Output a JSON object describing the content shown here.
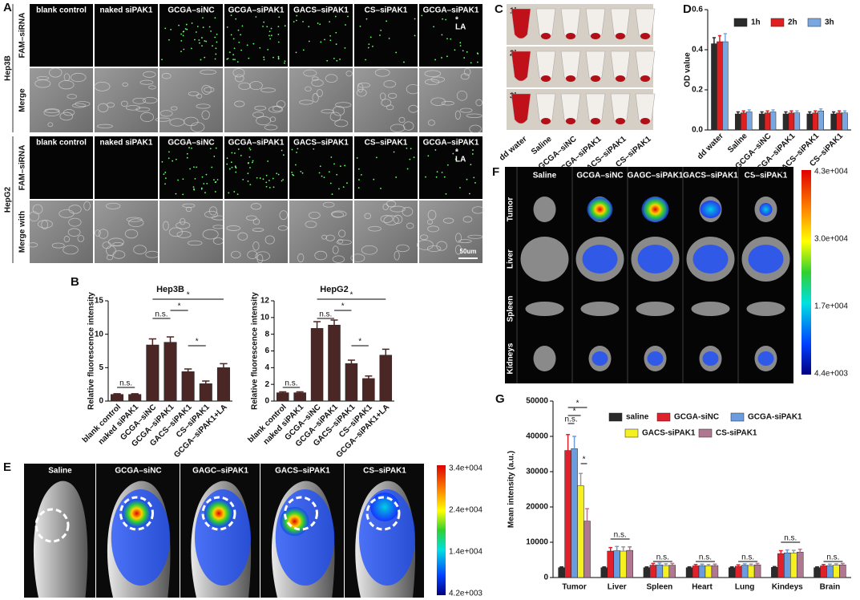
{
  "panel_labels": [
    "A",
    "B",
    "C",
    "D",
    "E",
    "F",
    "G"
  ],
  "panel_a": {
    "columns": [
      "blank control",
      "naked siPAK1",
      "GCGA–siNC",
      "GCGA–siPAK1",
      "GACS–siPAK1",
      "CS–siPAK1",
      "GCGA–siPAK1"
    ],
    "la_marker": "*",
    "la_label": "LA",
    "groups": [
      {
        "name": "Hep3B",
        "rows": [
          "FAM–siRNA",
          "Merge"
        ]
      },
      {
        "name": "HepG2",
        "rows": [
          "FAM–siRNA",
          "Merge with"
        ]
      }
    ],
    "scale_bar": "50um"
  },
  "panel_c": {
    "times": [
      "1h",
      "2h",
      "3h"
    ],
    "labels": [
      "dd water",
      "Saline",
      "GCGA–siNC",
      "GCGA–siPAK1",
      "GACS–siPAK1",
      "CS–siPAK1"
    ]
  },
  "panel_e": {
    "labels": [
      "Saline",
      "GCGA–siNC",
      "GAGC–siPAK1",
      "GACS–siPAK1",
      "CS–siPAK1"
    ],
    "colorbar": [
      "3.4e+004",
      "2.4e+004",
      "1.4e+004",
      "4.2e+003"
    ]
  },
  "panel_f": {
    "columns": [
      "Saline",
      "GCGA–siNC",
      "GAGC–siPAK1",
      "GACS–siPAK1",
      "CS–siPAK1"
    ],
    "rows": [
      "Tumor",
      "Liver",
      "Spleen",
      "Kidneys"
    ],
    "colorbar": [
      "4.3e+004",
      "3.0e+004",
      "1.7e+004",
      "4.4e+003"
    ]
  },
  "chart_data": [
    {
      "type": "bar",
      "title": "Hep3B",
      "y_label": "Relative fluorescence intensity",
      "categories": [
        "blank control",
        "naked siPAK1",
        "GCGA–siNC",
        "GCGA–siPAK1",
        "GACS–siPAK1",
        "CS–siPAK1",
        "GCGA–siPAK1+LA"
      ],
      "values": [
        1.0,
        1.0,
        8.4,
        8.8,
        4.4,
        2.6,
        5.0
      ],
      "errors": [
        0.1,
        0.1,
        0.9,
        0.8,
        0.4,
        0.4,
        0.6
      ],
      "color": "#4a2624",
      "ylim": [
        0,
        15
      ],
      "yticks": [
        0,
        5,
        10,
        15
      ],
      "annotations": [
        "n.s.",
        "n.s.",
        "*",
        "*",
        "*"
      ]
    },
    {
      "type": "bar",
      "title": "HepG2",
      "y_label": "Relative fluorescence intensity",
      "categories": [
        "blank control",
        "naked siPAK1",
        "GCGA–siNC",
        "GCGA–siPAK1",
        "GACS–siPAK1",
        "CS–siPAK1",
        "GCGA–siPAK1+LA"
      ],
      "values": [
        1.0,
        1.0,
        8.7,
        9.1,
        4.5,
        2.7,
        5.5
      ],
      "errors": [
        0.1,
        0.1,
        0.8,
        0.6,
        0.4,
        0.3,
        0.7
      ],
      "color": "#4a2624",
      "ylim": [
        0,
        12
      ],
      "yticks": [
        0,
        2,
        4,
        6,
        8,
        10,
        12
      ],
      "annotations": [
        "n.s.",
        "n.s.",
        "*",
        "*",
        "*"
      ]
    },
    {
      "type": "bar",
      "y_label": "OD value",
      "categories": [
        "dd water",
        "Saline",
        "GCGA–siNC",
        "GCGA–siPAK1",
        "GACS–siPAK1",
        "CS–siPAK1"
      ],
      "series": [
        {
          "name": "1h",
          "color": "#2b2b2b",
          "values": [
            0.43,
            0.08,
            0.08,
            0.08,
            0.08,
            0.08
          ],
          "errors": [
            0.03,
            0.01,
            0.01,
            0.01,
            0.01,
            0.01
          ]
        },
        {
          "name": "2h",
          "color": "#e02020",
          "values": [
            0.44,
            0.085,
            0.085,
            0.085,
            0.085,
            0.085
          ],
          "errors": [
            0.03,
            0.01,
            0.01,
            0.01,
            0.01,
            0.01
          ]
        },
        {
          "name": "3h",
          "color": "#7aa7e0",
          "values": [
            0.44,
            0.09,
            0.09,
            0.085,
            0.095,
            0.085
          ],
          "errors": [
            0.04,
            0.01,
            0.01,
            0.01,
            0.01,
            0.01
          ]
        }
      ],
      "ylim": [
        0,
        0.6
      ],
      "yticks": [
        {
          "value": 0,
          "label": "0.0"
        },
        0.2,
        0.4,
        0.6
      ]
    },
    {
      "type": "bar",
      "y_label": "Mean intensity (a.u.)",
      "categories": [
        "Tumor",
        "Liver",
        "Spleen",
        "Heart",
        "Lung",
        "Kindeys",
        "Brain"
      ],
      "series": [
        {
          "name": "saline",
          "color": "#2b2b2b",
          "values": [
            2800,
            2800,
            2800,
            2800,
            2800,
            2900,
            2800
          ],
          "errors": [
            200,
            200,
            200,
            200,
            200,
            200,
            200
          ]
        },
        {
          "name": "GCGA-siNC",
          "color": "#e0202a",
          "values": [
            36000,
            7500,
            3500,
            3300,
            3200,
            6800,
            3300
          ],
          "errors": [
            4500,
            1000,
            500,
            400,
            400,
            800,
            400
          ]
        },
        {
          "name": "GCGA-siPAK1",
          "color": "#6a9de0",
          "values": [
            36500,
            7600,
            3600,
            3400,
            3500,
            7000,
            3400
          ],
          "errors": [
            3500,
            1200,
            500,
            400,
            400,
            800,
            400
          ]
        },
        {
          "name": "GACS-siPAK1",
          "color": "#f5f020",
          "values": [
            26000,
            7500,
            3400,
            3300,
            3400,
            6900,
            3500
          ],
          "errors": [
            3500,
            1200,
            500,
            400,
            400,
            800,
            400
          ]
        },
        {
          "name": "CS-siPAK1",
          "color": "#b07890",
          "values": [
            16000,
            7700,
            3500,
            3400,
            3600,
            7200,
            3600
          ],
          "errors": [
            3500,
            1000,
            500,
            400,
            400,
            800,
            400
          ]
        }
      ],
      "ylim": [
        0,
        50000
      ],
      "yticks": [
        0,
        10000,
        20000,
        30000,
        40000,
        50000
      ],
      "annotations": [
        "n.s.",
        "*",
        "*",
        "*",
        "n.s.",
        "n.s.",
        "n.s.",
        "n.s.",
        "n.s.",
        "n.s."
      ]
    }
  ]
}
